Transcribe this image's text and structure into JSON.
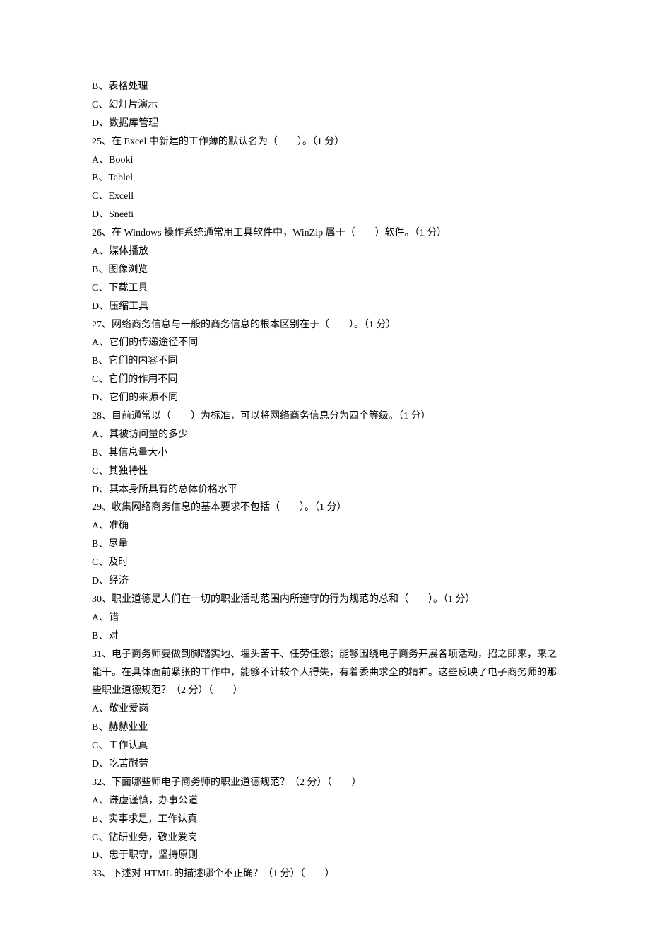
{
  "lines": [
    "B、表格处理",
    "C、幻灯片演示",
    "D、数据库管理",
    "25、在 Excel 中新建的工作薄的默认名为（　　）。（1 分）",
    "A、Booki",
    "B、Tablel",
    "C、Excell",
    "D、Sneeti",
    "26、在 Windows 操作系统通常用工具软件中，WinZip 属于（　　）软件。（1 分）",
    "A、媒体播放",
    "B、图像浏览",
    "C、下载工具",
    "D、压缩工具",
    "27、网络商务信息与一般的商务信息的根本区别在于（　　）。（1 分）",
    "A、它们的传递途径不同",
    "B、它们的内容不同",
    "C、它们的作用不同",
    "D、它们的来源不同",
    "28、目前通常以（　　）为标准，可以将网络商务信息分为四个等级。（1 分）",
    "A、其被访问量的多少",
    "B、其信息量大小",
    "C、其独特性",
    "D、其本身所具有的总体价格水平",
    "29、收集网络商务信息的基本要求不包括（　　）。（1 分）",
    "A、准确",
    "B、尽量",
    "C、及时",
    "D、经济",
    "30、职业道德是人们在一切的职业活动范围内所遵守的行为规范的总和（　　）。（1 分）",
    "A、错",
    "B、对",
    "31、电子商务师要做到脚踏实地、埋头苦干、任劳任怨；能够围绕电子商务开展各项活动，招之即来，来之能干。在具体面前紧张的工作中，能够不计较个人得失，有着委曲求全的精神。这些反映了电子商务师的那些职业道德规范？（2 分）（　　）",
    "A、敬业爱岗",
    "B、赫赫业业",
    "C、工作认真",
    "D、吃苦耐劳",
    "32、下面哪些师电子商务师的职业道德规范？（2 分）（　　）",
    "A、谦虚谨慎，办事公道",
    "B、实事求是，工作认真",
    "C、钻研业务，敬业爱岗",
    "D、忠于职守，坚持原则",
    "33、下述对 HTML 的描述哪个不正确？（1 分）（　　）"
  ]
}
